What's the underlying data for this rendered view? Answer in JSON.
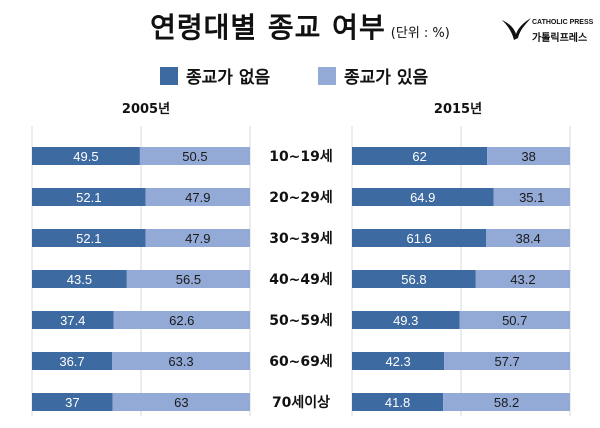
{
  "header": {
    "title": "연령대별 종교 여부",
    "unit": "(단위 : %)",
    "logo_en": "CATHOLIC PRESS",
    "logo_ko": "가톨릭프레스"
  },
  "legend": {
    "items": [
      {
        "label": "종교가 없음",
        "color": "#3d6aa0"
      },
      {
        "label": "종교가 있음",
        "color": "#93a9d6"
      }
    ]
  },
  "chart_data": {
    "type": "bar",
    "orientation": "horizontal-stacked-100",
    "categories": [
      "10~19세",
      "20~29세",
      "30~39세",
      "40~49세",
      "50~59세",
      "60~69세",
      "70세이상"
    ],
    "panels": [
      {
        "year": "2005년",
        "series": [
          {
            "name": "종교가 없음",
            "color": "#3d6aa0",
            "values": [
              49.5,
              52.1,
              52.1,
              43.5,
              37.4,
              36.7,
              37
            ]
          },
          {
            "name": "종교가 있음",
            "color": "#93a9d6",
            "values": [
              50.5,
              47.9,
              47.9,
              56.5,
              62.6,
              63.3,
              63
            ]
          }
        ]
      },
      {
        "year": "2015년",
        "series": [
          {
            "name": "종교가 없음",
            "color": "#3d6aa0",
            "values": [
              62,
              64.9,
              61.6,
              56.8,
              49.3,
              42.3,
              41.8
            ]
          },
          {
            "name": "종교가 있음",
            "color": "#93a9d6",
            "values": [
              38,
              35.1,
              38.4,
              43.2,
              50.7,
              57.7,
              58.2
            ]
          }
        ]
      }
    ],
    "xlim": [
      0,
      100
    ]
  }
}
